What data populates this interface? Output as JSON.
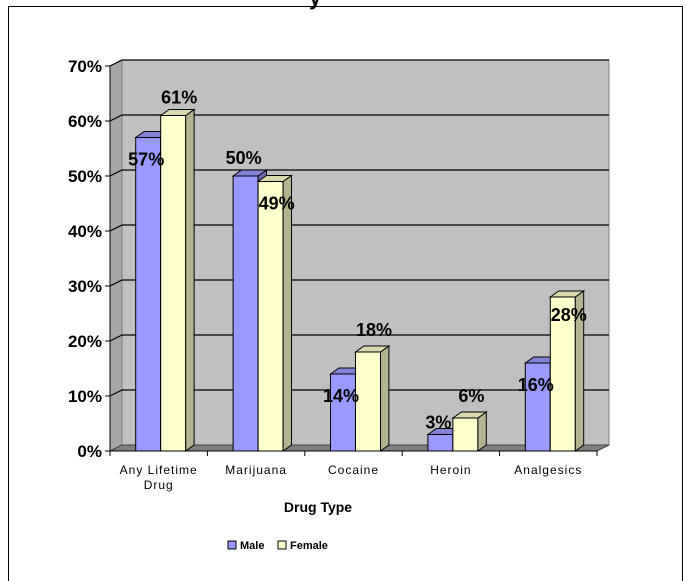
{
  "chart_data": {
    "type": "bar",
    "title": "",
    "xlabel": "Drug Type",
    "ylabel": "",
    "ylim": [
      0,
      70
    ],
    "yticks": [
      "0%",
      "10%",
      "20%",
      "30%",
      "40%",
      "50%",
      "60%",
      "70%"
    ],
    "categories": [
      [
        "Any Lifetime",
        "Drug"
      ],
      [
        "Marijuana"
      ],
      [
        "Cocaine"
      ],
      [
        "Heroin"
      ],
      [
        "Analgesics"
      ]
    ],
    "series": [
      {
        "name": "Male",
        "values": [
          57,
          50,
          14,
          3,
          16
        ],
        "labels": [
          "57%",
          "50%",
          "14%",
          "3%",
          "16%"
        ],
        "color": "#9999ff"
      },
      {
        "name": "Female",
        "values": [
          61,
          49,
          18,
          6,
          28
        ],
        "labels": [
          "61%",
          "49%",
          "18%",
          "6%",
          "28%"
        ],
        "color": "#ffffcc"
      }
    ],
    "grid": true,
    "plot_background": "#c0c0c0",
    "legend_position": "bottom",
    "style": "3d-clustered-column"
  }
}
